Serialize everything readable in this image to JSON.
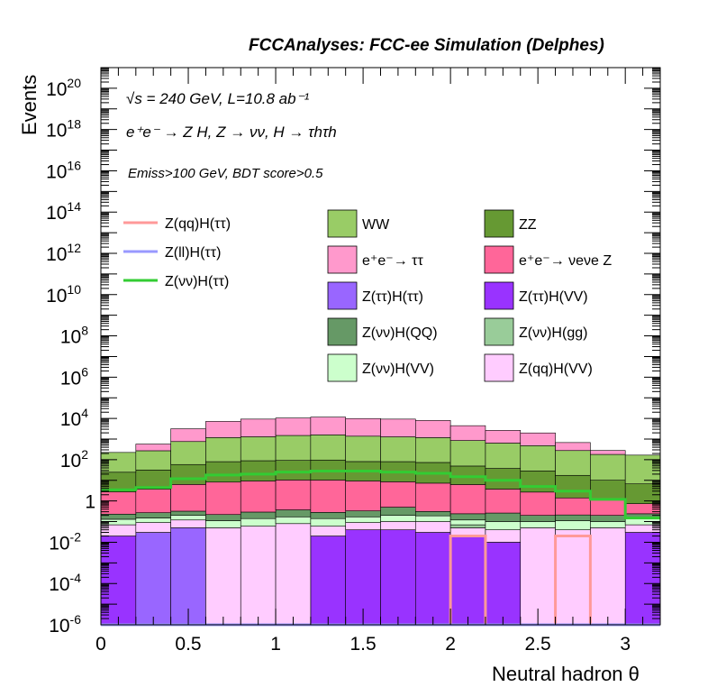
{
  "header": {
    "title": "FCCAnalyses: FCC-ee Simulation (Delphes)"
  },
  "annotations": {
    "energy": "√s = 240 GeV, L=10.8 ab⁻¹",
    "process": "e⁺e⁻ → Z H, Z → νν, H → τhτh",
    "cuts": "Emiss>100 GeV, BDT score>0.5"
  },
  "chart_data": {
    "type": "area",
    "style": "stacked histogram, log y",
    "xlabel": "Neutral hadron θ",
    "ylabel": "Events",
    "xlim": [
      0,
      3.2
    ],
    "ylim": [
      1e-06,
      1e+21
    ],
    "yscale": "log",
    "grid": false,
    "legend_placement": "top-center",
    "x_ticks": [
      "0",
      "0.5",
      "1",
      "1.5",
      "2",
      "2.5",
      "3"
    ],
    "y_ticks": [
      "10^-6",
      "10^-4",
      "10^-2",
      "1",
      "10^2",
      "10^4",
      "10^6",
      "10^8",
      "10^10",
      "10^12",
      "10^14",
      "10^16",
      "10^18",
      "10^20"
    ],
    "bin_edges": [
      0,
      0.2,
      0.4,
      0.6,
      0.8,
      1.0,
      1.2,
      1.4,
      1.6,
      1.8,
      2.0,
      2.2,
      2.4,
      2.6,
      2.8,
      3.0,
      3.2
    ],
    "stack_order_bottom_to_top": [
      "Z(ττ)H(VV)",
      "Z(ττ)H(ττ)",
      "Z(qq)H(VV)",
      "Z(νν)H(gg)",
      "Z(νν)H(VV)",
      "Z(νν)H(QQ)",
      "e⁺e⁻→ νeνe Z",
      "ZZ",
      "WW",
      "e⁺e⁻→ ττ"
    ],
    "stacked_series": [
      {
        "name": "Z(ττ)H(VV)",
        "color": "#9933ff",
        "values": [
          0.02,
          0.0,
          0.0,
          0.0,
          0.0,
          0.0,
          0.02,
          0.04,
          0.04,
          0.03,
          0.02,
          0.01,
          0.0,
          0.0,
          0.0,
          0.03
        ]
      },
      {
        "name": "Z(ττ)H(ττ)",
        "color": "#9966ff",
        "values": [
          0.0,
          0.03,
          0.05,
          0.0,
          0.0,
          0.0,
          0.0,
          0.0,
          0.0,
          0.0,
          0.0,
          0.0,
          0.0,
          0.0,
          0.0,
          0.0
        ]
      },
      {
        "name": "Z(qq)H(VV)",
        "color": "#ffccff",
        "values": [
          0.05,
          0.06,
          0.07,
          0.05,
          0.06,
          0.08,
          0.04,
          0.05,
          0.06,
          0.07,
          0.03,
          0.03,
          0.05,
          0.04,
          0.05,
          0.04
        ]
      },
      {
        "name": "Z(νν)H(gg)",
        "color": "#99cc99",
        "values": [
          0,
          0,
          0,
          0,
          0,
          0,
          0,
          0,
          0,
          0,
          0.02,
          0,
          0,
          0,
          0,
          0
        ]
      },
      {
        "name": "Z(νν)H(VV)",
        "color": "#ccffcc",
        "values": [
          0.06,
          0.06,
          0.08,
          0.06,
          0.08,
          0.09,
          0.08,
          0.08,
          0.1,
          0.09,
          0.05,
          0.06,
          0.05,
          0.07,
          0.05,
          0.07
        ]
      },
      {
        "name": "Z(νν)H(QQ)",
        "color": "#669966",
        "values": [
          0.1,
          0.12,
          0.12,
          0.11,
          0.15,
          0.2,
          0.14,
          0.16,
          0.3,
          0.12,
          0.12,
          0.16,
          0.1,
          0.1,
          0.1,
          0.1
        ]
      },
      {
        "name": "e⁺e⁻→ νeνe Z",
        "color": "#ff6699",
        "values": [
          2.5,
          3.5,
          6,
          8,
          9,
          10,
          10,
          9,
          8,
          7,
          6,
          3.5,
          2.5,
          1.2,
          0.9,
          0.5
        ]
      },
      {
        "name": "ZZ",
        "color": "#669933",
        "values": [
          22,
          28,
          52,
          72,
          80,
          82,
          86,
          72,
          72,
          66,
          43,
          34,
          26,
          16,
          9,
          6
        ]
      },
      {
        "name": "WW",
        "color": "#99cc66",
        "values": [
          200,
          240,
          700,
          1100,
          1200,
          1400,
          1500,
          1300,
          1200,
          1100,
          800,
          600,
          450,
          260,
          170,
          160
        ]
      },
      {
        "name": "e⁺e⁻→ ττ",
        "color": "#ff99cc",
        "values": [
          0,
          300,
          2400,
          6000,
          8000,
          9000,
          10000,
          8500,
          8000,
          6800,
          3600,
          2000,
          1500,
          400,
          100,
          0
        ]
      }
    ],
    "line_series": [
      {
        "name": "Z(qq)H(ττ)",
        "color": "#ff9999",
        "values": [
          0,
          0,
          0,
          0,
          0,
          0,
          0,
          0,
          0,
          0,
          0.02,
          0,
          0,
          0.02,
          0,
          0
        ]
      },
      {
        "name": "Z(ll)H(ττ)",
        "color": "#9999ff",
        "values": [
          0,
          0,
          0,
          0,
          0,
          0,
          0,
          0,
          0,
          0,
          0,
          0,
          0,
          0,
          0,
          0
        ]
      },
      {
        "name": "Z(νν)H(ττ)",
        "color": "#33cc33",
        "values": [
          3.5,
          4.5,
          12,
          18,
          20,
          25,
          28,
          28,
          25,
          22,
          15,
          10,
          5,
          3,
          1.2,
          0.15
        ]
      }
    ],
    "legend_lines": [
      "Z(qq)H(ττ)",
      "Z(ll)H(ττ)",
      "Z(νν)H(ττ)"
    ],
    "legend_boxes": [
      "WW",
      "ZZ",
      "e⁺e⁻→ ττ",
      "e⁺e⁻→ νeνe Z",
      "Z(ττ)H(ττ)",
      "Z(ττ)H(VV)",
      "Z(νν)H(QQ)",
      "Z(νν)H(gg)",
      "Z(νν)H(VV)",
      "Z(qq)H(VV)"
    ]
  }
}
